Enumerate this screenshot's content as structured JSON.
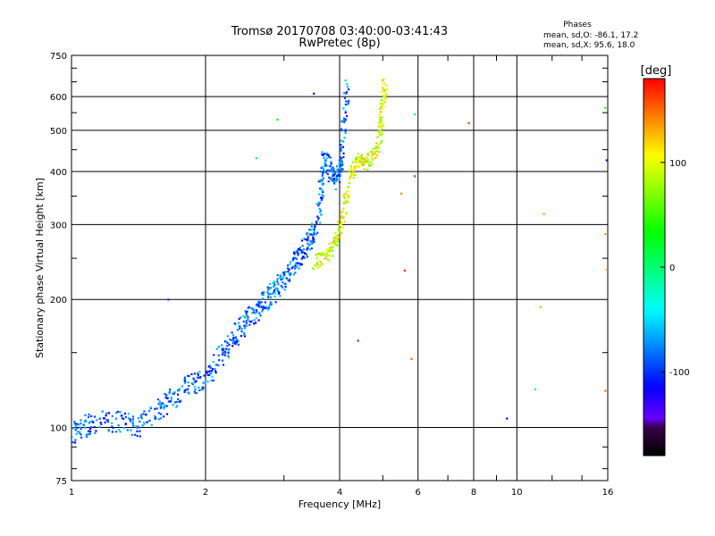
{
  "chart_data": {
    "type": "scatter",
    "title_line1": "Tromsø 20170708 03:40:00-03:41:43",
    "title_line2": "RwPretec (8p)",
    "stats": {
      "heading": "Phases",
      "line_o": "mean, sd,O: -86.1, 17.2",
      "line_x": "mean, sd,X:  95.6, 18.0"
    },
    "xlabel": "Frequency [MHz]",
    "ylabel": "Stationary phase Virtual Height [km]",
    "x_scale": "log",
    "y_scale": "log",
    "xlim": [
      1,
      16
    ],
    "ylim": [
      75,
      750
    ],
    "x_ticks": [
      1,
      2,
      4,
      6,
      8,
      10,
      16
    ],
    "x_tick_labels": [
      "1",
      "2",
      "4",
      "6",
      "8",
      "10",
      "16"
    ],
    "y_ticks": [
      75,
      100,
      200,
      300,
      400,
      500,
      600,
      750
    ],
    "y_tick_labels": [
      "75",
      "100",
      "200",
      "300",
      "400",
      "500",
      "600",
      "750"
    ],
    "grid": true,
    "colorbar": {
      "label": "[deg]",
      "range": [
        -180,
        180
      ],
      "ticks": [
        100,
        0,
        -100
      ],
      "tick_labels": [
        "100",
        "0",
        "-100"
      ]
    },
    "series": [
      {
        "name": "O-mode (blue, phase ~ -86 deg)",
        "color_phase": -86,
        "trace": [
          [
            1.0,
            97
          ],
          [
            1.05,
            100
          ],
          [
            1.1,
            102
          ],
          [
            1.2,
            104
          ],
          [
            1.3,
            103
          ],
          [
            1.4,
            100
          ],
          [
            1.5,
            105
          ],
          [
            1.6,
            112
          ],
          [
            1.7,
            118
          ],
          [
            1.8,
            125
          ],
          [
            1.9,
            128
          ],
          [
            2.0,
            130
          ],
          [
            2.1,
            140
          ],
          [
            2.2,
            150
          ],
          [
            2.3,
            160
          ],
          [
            2.4,
            172
          ],
          [
            2.5,
            180
          ],
          [
            2.6,
            188
          ],
          [
            2.7,
            195
          ],
          [
            2.8,
            205
          ],
          [
            2.9,
            215
          ],
          [
            3.0,
            225
          ],
          [
            3.1,
            235
          ],
          [
            3.2,
            245
          ],
          [
            3.3,
            258
          ],
          [
            3.4,
            270
          ],
          [
            3.5,
            290
          ],
          [
            3.6,
            320
          ],
          [
            3.65,
            380
          ],
          [
            3.7,
            430
          ],
          [
            3.8,
            400
          ],
          [
            3.9,
            385
          ],
          [
            4.0,
            395
          ],
          [
            4.05,
            430
          ],
          [
            4.1,
            520
          ],
          [
            4.15,
            640
          ]
        ]
      },
      {
        "name": "X-mode (yellow, phase ~ 96 deg)",
        "color_phase": 96,
        "trace": [
          [
            3.5,
            245
          ],
          [
            3.7,
            250
          ],
          [
            3.9,
            270
          ],
          [
            4.0,
            290
          ],
          [
            4.1,
            330
          ],
          [
            4.25,
            400
          ],
          [
            4.4,
            425
          ],
          [
            4.6,
            420
          ],
          [
            4.8,
            435
          ],
          [
            4.95,
            500
          ],
          [
            5.0,
            580
          ],
          [
            5.05,
            650
          ]
        ]
      }
    ],
    "scattered_points": [
      [
        1.65,
        200
      ],
      [
        1.62,
        120
      ],
      [
        2.9,
        530
      ],
      [
        3.5,
        610
      ],
      [
        2.6,
        430
      ],
      [
        4.4,
        160
      ],
      [
        5.5,
        355
      ],
      [
        5.8,
        145
      ],
      [
        5.9,
        390
      ],
      [
        5.9,
        545
      ],
      [
        7.8,
        520
      ],
      [
        9.5,
        105
      ],
      [
        11.3,
        192
      ],
      [
        11.5,
        318
      ],
      [
        11.0,
        123
      ],
      [
        15.8,
        565
      ],
      [
        15.9,
        425
      ],
      [
        15.8,
        285
      ],
      [
        15.9,
        235
      ],
      [
        15.8,
        122
      ],
      [
        5.6,
        234
      ]
    ]
  }
}
